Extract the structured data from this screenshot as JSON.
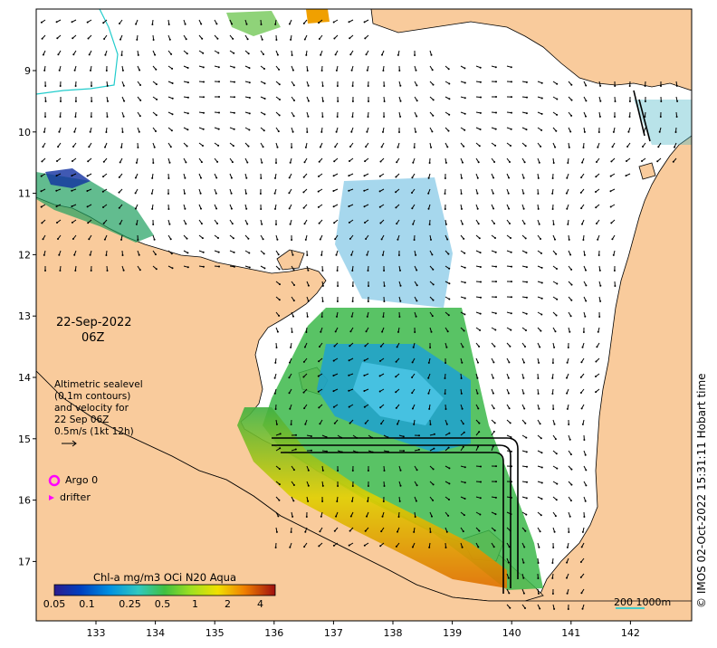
{
  "map": {
    "date_line1": "22-Sep-2022",
    "date_line2": "06Z",
    "legend_lines": [
      "Altimetric sealevel",
      "(0.1m contours)",
      "and velocity for",
      "22 Sep 06Z",
      "0.5m/s (1kt 12h)"
    ],
    "argo_label": "Argo 0",
    "drifter_label": "drifter",
    "credit": "© IMOS 02-Oct-2022 15:31:11 Hobart time",
    "scale_label": "200  1000m",
    "colorbar": {
      "title": "Chl-a mg/m3 OCi N20 Aqua",
      "ticks": [
        "0.05",
        "0.1",
        "0.25",
        "0.5",
        "1",
        "2",
        "4"
      ]
    },
    "x_ticks": [
      "133",
      "134",
      "135",
      "136",
      "137",
      "138",
      "139",
      "140",
      "141",
      "142"
    ],
    "y_ticks": [
      "9",
      "10",
      "11",
      "12",
      "13",
      "14",
      "15",
      "16",
      "17"
    ],
    "colors": {
      "land": "#f9cb9c",
      "ocean": "#ffffff",
      "argo": "#ff00ff",
      "scale_bar": "#44cccc"
    }
  }
}
